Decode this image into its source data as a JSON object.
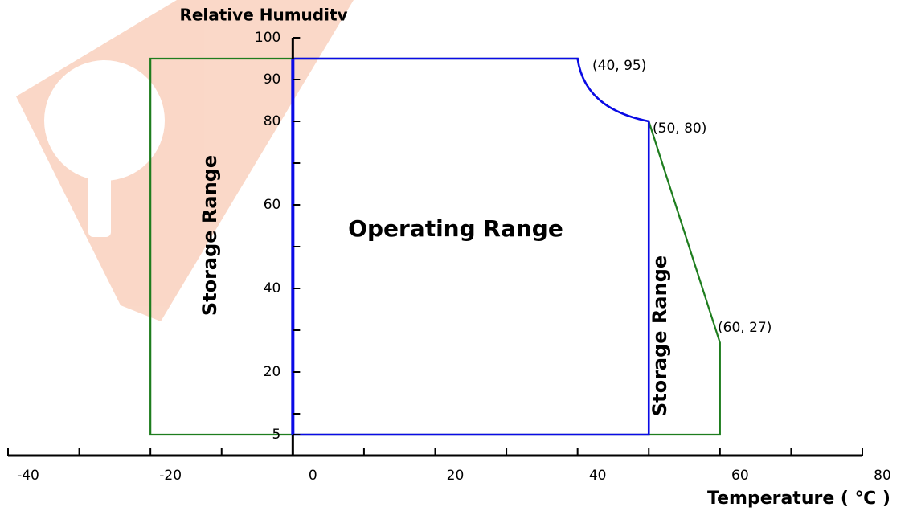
{
  "chart_data": {
    "type": "range",
    "y_label": "Relative Humuditv",
    "x_label": "Temperature ( ℃ )",
    "xlim": [
      -40,
      80
    ],
    "xticks": [
      -40,
      -20,
      0,
      20,
      40,
      60,
      80
    ],
    "xminorticks": [
      -30,
      -10,
      10,
      30,
      50,
      70
    ],
    "ylim": [
      0,
      100
    ],
    "yticks": [
      5,
      20,
      40,
      60,
      80,
      90,
      100
    ],
    "yminorticks": [
      10,
      30,
      50,
      70
    ],
    "series": [
      {
        "name": "Storage Range",
        "color": "#1e7d1e",
        "x": [
          -20,
          -20,
          40,
          50,
          60,
          60
        ],
        "values": [
          5,
          95,
          95,
          80,
          27,
          5
        ]
      },
      {
        "name": "Operating Range",
        "color": "#0a0ae6",
        "x": [
          0,
          0,
          40,
          50,
          50
        ],
        "values": [
          5,
          95,
          95,
          80,
          5
        ]
      }
    ],
    "annotations": [
      "(40, 95)",
      "(50, 80)",
      "(60, 27)"
    ]
  }
}
